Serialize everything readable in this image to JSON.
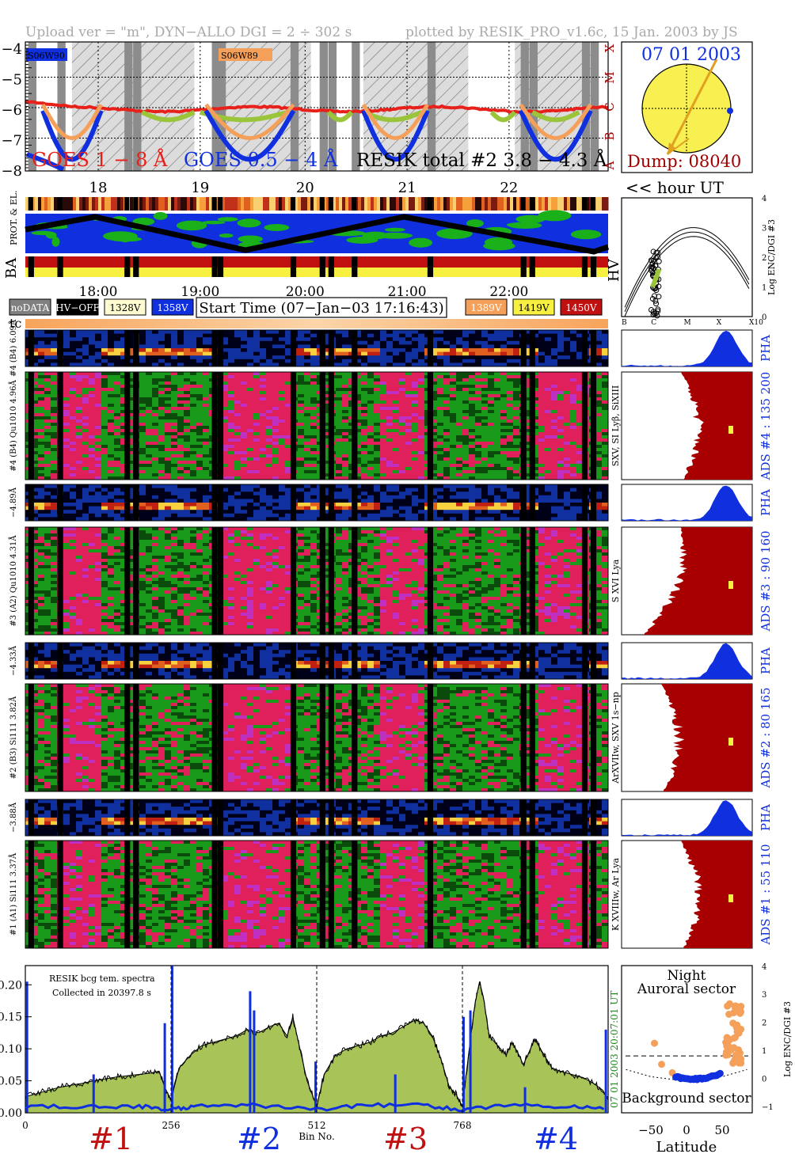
{
  "header": {
    "left": "Upload ver = \"m\", DYN−ALLO DGI =   2 ÷ 302 s",
    "right": "plotted by RESIK_PRO_v1.6c, 15 Jan. 2003 by JS"
  },
  "colors": {
    "goes_long": "#e8201a",
    "goes_short": "#1030e0",
    "resik": "#9ac43a",
    "orange": "#f5a05a",
    "heat_red": "#e0205a",
    "heat_green": "#1a9a1a",
    "ads_fill": "#a80000",
    "pha_fill": "#1030e0",
    "sun": "#f8f050"
  },
  "top_panel": {
    "ytick_labels": [
      "−4",
      "−5",
      "−6",
      "−7",
      "−8"
    ],
    "class_labels": [
      "X",
      "M",
      "C",
      "B",
      "A"
    ],
    "region_labels": [
      "S06W90",
      "S06W89"
    ],
    "legend_goes_long": "GOES 1 − 8 Å",
    "legend_goes_short": "GOES 0.5 − 4 Å",
    "legend_resik": "RESIK total #2  3.8 − 4.3 Å",
    "hour_labels": [
      "18",
      "19",
      "20",
      "21",
      "22"
    ],
    "hour_ut": "<< hour UT"
  },
  "sun_panel": {
    "date": "07 01 2003",
    "dump": "Dump: 08040"
  },
  "orbit_panel": {
    "prot_label": "PROT. & EL.",
    "ba_label": "BA",
    "hv_label": "HV",
    "time_labels": [
      "18:00",
      "19:00",
      "20:00",
      "21:00",
      "22:00"
    ]
  },
  "hv_legend": {
    "items": [
      {
        "label": "noDATA",
        "bg": "#808080",
        "fg": "#ffffff"
      },
      {
        "label": "HV−OFF",
        "bg": "#000000",
        "fg": "#ffffff"
      },
      {
        "label": "1328V",
        "bg": "#fffbd0",
        "fg": "#000000"
      },
      {
        "label": "1358V",
        "bg": "#1030e0",
        "fg": "#ffffff"
      }
    ],
    "start_time": "Start Time (07−Jan−03 17:16:43)",
    "items_right": [
      {
        "label": "1389V",
        "bg": "#f5a05a",
        "fg": "#ffffff"
      },
      {
        "label": "1419V",
        "bg": "#f8f040",
        "fg": "#000000"
      },
      {
        "label": "1450V",
        "bg": "#c01010",
        "fg": "#ffffff"
      }
    ],
    "tc": "tc"
  },
  "enc_dgi_panel": {
    "ylabel": "Log ENC/DGI #3",
    "yticks": [
      "0",
      "1",
      "2",
      "3",
      "4"
    ],
    "xticks": [
      "B",
      "C",
      "M",
      "X",
      "X10"
    ]
  },
  "channels": [
    {
      "pha_label": "#4 (B4)  6.09Å",
      "main_label": "#4 (B4) Qu1010 4.96Å",
      "ions": "SXV, SI Lyβ, SiXIII",
      "ads": "ADS #4 :  135 200",
      "pha": "PHA"
    },
    {
      "pha_label": "−4.89Å",
      "main_label": "#3 (A2) Qu1010 4.31Å",
      "ions": "S XVI Lya",
      "ads": "ADS #3 :   90 160",
      "pha": "PHA"
    },
    {
      "pha_label": "−4.33Å",
      "main_label": "#2 (B3) Si111 3.82Å",
      "ions": "ArXVIIw, SXV 1s−np",
      "ads": "ADS #2 :   80 165",
      "pha": "PHA"
    },
    {
      "pha_label": "−3.88Å",
      "main_label": "#1 (A1) Si111 3.37Å",
      "ions": "K XVIIIw, Ar Lya",
      "ads": "ADS #1 :   55 110",
      "pha": "PHA"
    }
  ],
  "chart_data": {
    "type": "area",
    "title": "RESIK bcg tem. spectra",
    "subtitle": "Collected in 20397.8 s",
    "xlabel": "Bin No.",
    "ylabel": "",
    "xlim": [
      0,
      1024
    ],
    "ylim": [
      0,
      0.23
    ],
    "xticks": [
      0,
      256,
      512,
      768
    ],
    "yticks": [
      "0.00",
      "0.05",
      "0.10",
      "0.15",
      "0.20"
    ],
    "right_label": "07 01 2003   20:07:01 UT",
    "section_labels": [
      "#1",
      "#2",
      "#3",
      "#4"
    ],
    "series": [
      {
        "values": [
          [
            0,
            0.025
          ],
          [
            20,
            0.03
          ],
          [
            40,
            0.035
          ],
          [
            60,
            0.04
          ],
          [
            80,
            0.043
          ],
          [
            100,
            0.046
          ],
          [
            120,
            0.05
          ],
          [
            140,
            0.053
          ],
          [
            160,
            0.056
          ],
          [
            180,
            0.058
          ],
          [
            200,
            0.06
          ],
          [
            220,
            0.062
          ],
          [
            235,
            0.065
          ],
          [
            245,
            0.04
          ],
          [
            256,
            0.02
          ],
          [
            270,
            0.07
          ],
          [
            290,
            0.09
          ],
          [
            310,
            0.105
          ],
          [
            330,
            0.11
          ],
          [
            350,
            0.115
          ],
          [
            370,
            0.12
          ],
          [
            390,
            0.13
          ],
          [
            410,
            0.125
          ],
          [
            430,
            0.135
          ],
          [
            445,
            0.14
          ],
          [
            460,
            0.12
          ],
          [
            470,
            0.15
          ],
          [
            480,
            0.11
          ],
          [
            495,
            0.05
          ],
          [
            512,
            0.01
          ],
          [
            525,
            0.06
          ],
          [
            545,
            0.09
          ],
          [
            565,
            0.1
          ],
          [
            585,
            0.105
          ],
          [
            605,
            0.11
          ],
          [
            625,
            0.12
          ],
          [
            645,
            0.125
          ],
          [
            665,
            0.135
          ],
          [
            685,
            0.145
          ],
          [
            700,
            0.14
          ],
          [
            715,
            0.12
          ],
          [
            730,
            0.085
          ],
          [
            745,
            0.04
          ],
          [
            756,
            0.03
          ],
          [
            768,
            0.01
          ],
          [
            780,
            0.1
          ],
          [
            790,
            0.17
          ],
          [
            798,
            0.205
          ],
          [
            805,
            0.18
          ],
          [
            815,
            0.12
          ],
          [
            830,
            0.105
          ],
          [
            845,
            0.09
          ],
          [
            855,
            0.11
          ],
          [
            865,
            0.095
          ],
          [
            875,
            0.075
          ],
          [
            885,
            0.095
          ],
          [
            895,
            0.115
          ],
          [
            905,
            0.1
          ],
          [
            915,
            0.085
          ],
          [
            925,
            0.07
          ],
          [
            940,
            0.065
          ],
          [
            960,
            0.06
          ],
          [
            980,
            0.055
          ],
          [
            1000,
            0.045
          ],
          [
            1015,
            0.035
          ],
          [
            1024,
            0.02
          ]
        ]
      },
      {
        "values": [
          [
            0,
            0.01
          ],
          [
            100,
            0.01
          ],
          [
            200,
            0.01
          ],
          [
            256,
            0.005
          ],
          [
            300,
            0.01
          ],
          [
            400,
            0.012
          ],
          [
            512,
            0.005
          ],
          [
            600,
            0.012
          ],
          [
            700,
            0.012
          ],
          [
            768,
            0.005
          ],
          [
            850,
            0.012
          ],
          [
            950,
            0.01
          ],
          [
            1024,
            0.005
          ]
        ]
      }
    ]
  },
  "night_panel": {
    "title_line1": "Night",
    "title_line2": "Auroral sector",
    "bottom_label": "Background sector",
    "xlabel": "Latitude",
    "xticks": [
      "−50",
      "0",
      "50"
    ],
    "yticks": [
      "−1",
      "0",
      "1",
      "2",
      "3",
      "4"
    ],
    "ylabel": "Log ENC/DGI #3"
  }
}
